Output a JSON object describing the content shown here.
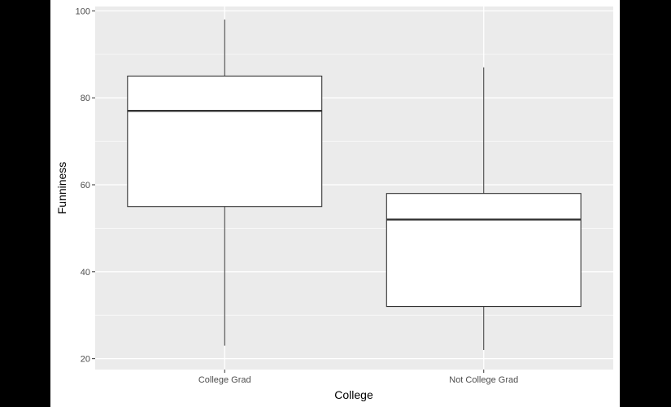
{
  "chart_data": {
    "type": "boxplot",
    "title": "",
    "xlabel": "College",
    "ylabel": "Funniness",
    "ylim": [
      17.5,
      101
    ],
    "yticks": [
      20,
      40,
      60,
      80,
      100
    ],
    "grid": true,
    "categories": [
      "College Grad",
      "Not College Grad"
    ],
    "boxes": [
      {
        "category": "College Grad",
        "whisker_low": 23,
        "q1": 55,
        "median": 77,
        "q3": 85,
        "whisker_high": 98
      },
      {
        "category": "Not College Grad",
        "whisker_low": 22,
        "q1": 32,
        "median": 52,
        "q3": 58,
        "whisker_high": 87
      }
    ],
    "colors": {
      "panel": "#EBEBEB",
      "grid_major": "#FFFFFF",
      "box_fill": "#FFFFFF",
      "box_line": "#333333",
      "outer": "#000000"
    }
  }
}
